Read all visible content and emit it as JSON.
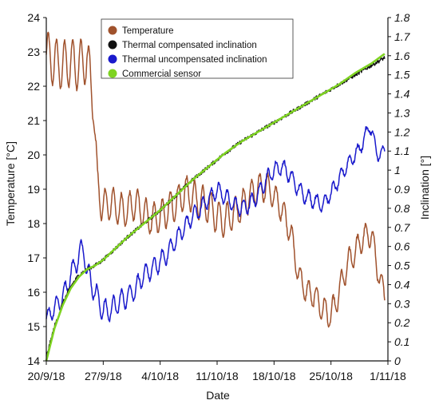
{
  "chart_data": {
    "type": "line",
    "title": "",
    "xlabel": "Date",
    "ylabel_left": "Temperature [°C]",
    "ylabel_right": "Inclination [°]",
    "x_tick_labels": [
      "20/9/18",
      "27/9/18",
      "4/10/18",
      "11/10/18",
      "18/10/18",
      "25/10/18",
      "1/11/18"
    ],
    "x_range_days": [
      0,
      42
    ],
    "ylim_left": [
      14,
      24
    ],
    "ylim_right": [
      0,
      1.8
    ],
    "y_ticks_left": [
      "14",
      "15",
      "16",
      "17",
      "18",
      "19",
      "20",
      "21",
      "22",
      "23",
      "24"
    ],
    "y_ticks_right": [
      "0",
      "0.1",
      "0.2",
      "0.3",
      "0.4",
      "0.5",
      "0.6",
      "0.7",
      "0.8",
      "0.9",
      "1",
      "1.1",
      "1.2",
      "1.3",
      "1.4",
      "1.5",
      "1.6",
      "1.7",
      "1.8"
    ],
    "grid": false,
    "legend_position": "top-center",
    "series": [
      {
        "name": "Temperature",
        "axis": "left",
        "color": "#a0522d",
        "noise": 0.06,
        "points": [
          [
            0,
            22.9
          ],
          [
            1,
            22.7
          ],
          [
            2,
            22.6
          ],
          [
            3,
            22.7
          ],
          [
            4,
            22.6
          ],
          [
            5,
            22.8
          ],
          [
            5.8,
            21.6
          ],
          [
            6.3,
            19.0
          ],
          [
            7,
            18.5
          ],
          [
            8,
            18.6
          ],
          [
            9,
            18.4
          ],
          [
            10,
            18.4
          ],
          [
            11,
            18.6
          ],
          [
            12,
            18.3
          ],
          [
            13,
            18.1
          ],
          [
            14,
            18.2
          ],
          [
            15,
            18.4
          ],
          [
            16,
            18.6
          ],
          [
            17,
            18.9
          ],
          [
            18,
            18.8
          ],
          [
            19,
            18.6
          ],
          [
            20,
            18.5
          ],
          [
            21,
            18.2
          ],
          [
            22,
            18.1
          ],
          [
            23,
            18.3
          ],
          [
            24,
            18.5
          ],
          [
            25,
            18.8
          ],
          [
            26,
            19.0
          ],
          [
            27,
            19.1
          ],
          [
            28,
            18.8
          ],
          [
            29,
            18.4
          ],
          [
            30,
            17.8
          ],
          [
            31,
            16.5
          ],
          [
            32,
            16.0
          ],
          [
            33,
            15.9
          ],
          [
            34,
            15.5
          ],
          [
            35,
            15.3
          ],
          [
            36,
            16.0
          ],
          [
            37,
            16.8
          ],
          [
            38,
            17.2
          ],
          [
            39,
            17.6
          ],
          [
            40,
            17.7
          ],
          [
            41,
            16.3
          ],
          [
            41.6,
            16.0
          ]
        ],
        "oscillation": [
          [
            0,
            0.7
          ],
          [
            5.5,
            0.7
          ],
          [
            7,
            0.5
          ],
          [
            12,
            0.45
          ],
          [
            20,
            0.5
          ],
          [
            28,
            0.4
          ],
          [
            31,
            0.35
          ],
          [
            36,
            0.4
          ],
          [
            41.6,
            0.3
          ]
        ]
      },
      {
        "name": "Thermal compensated inclination",
        "axis": "right",
        "color": "#111111",
        "noise": 0.01,
        "points": [
          [
            0,
            0.02
          ],
          [
            1,
            0.18
          ],
          [
            2,
            0.3
          ],
          [
            3,
            0.39
          ],
          [
            4,
            0.45
          ],
          [
            5,
            0.48
          ],
          [
            6,
            0.5
          ],
          [
            7,
            0.53
          ],
          [
            8,
            0.57
          ],
          [
            9,
            0.61
          ],
          [
            10,
            0.65
          ],
          [
            12,
            0.72
          ],
          [
            14,
            0.79
          ],
          [
            16,
            0.87
          ],
          [
            18,
            0.95
          ],
          [
            20,
            1.02
          ],
          [
            22,
            1.09
          ],
          [
            24,
            1.15
          ],
          [
            26,
            1.2
          ],
          [
            28,
            1.25
          ],
          [
            30,
            1.3
          ],
          [
            32,
            1.35
          ],
          [
            34,
            1.4
          ],
          [
            36,
            1.45
          ],
          [
            38,
            1.5
          ],
          [
            40,
            1.55
          ],
          [
            41.6,
            1.59
          ]
        ]
      },
      {
        "name": "Thermal uncompensated inclination",
        "axis": "right",
        "color": "#1a1acc",
        "noise": 0.01,
        "points": [
          [
            0,
            0.22
          ],
          [
            1,
            0.28
          ],
          [
            2,
            0.33
          ],
          [
            3,
            0.45
          ],
          [
            4,
            0.55
          ],
          [
            4.6,
            0.6
          ],
          [
            5,
            0.47
          ],
          [
            6,
            0.36
          ],
          [
            7,
            0.26
          ],
          [
            8,
            0.27
          ],
          [
            9,
            0.31
          ],
          [
            10,
            0.34
          ],
          [
            11,
            0.38
          ],
          [
            12,
            0.45
          ],
          [
            13,
            0.48
          ],
          [
            14,
            0.52
          ],
          [
            15,
            0.57
          ],
          [
            16,
            0.64
          ],
          [
            17,
            0.7
          ],
          [
            18,
            0.76
          ],
          [
            19,
            0.8
          ],
          [
            20,
            0.85
          ],
          [
            21,
            0.9
          ],
          [
            22,
            0.86
          ],
          [
            23,
            0.82
          ],
          [
            24,
            0.8
          ],
          [
            25,
            0.82
          ],
          [
            26,
            0.87
          ],
          [
            27,
            0.95
          ],
          [
            28,
            1.0
          ],
          [
            29,
            1.02
          ],
          [
            30,
            0.97
          ],
          [
            31,
            0.9
          ],
          [
            32,
            0.86
          ],
          [
            33,
            0.84
          ],
          [
            34,
            0.82
          ],
          [
            35,
            0.88
          ],
          [
            36,
            0.95
          ],
          [
            37,
            1.03
          ],
          [
            38,
            1.08
          ],
          [
            39,
            1.15
          ],
          [
            39.7,
            1.24
          ],
          [
            40.5,
            1.12
          ],
          [
            41,
            1.06
          ],
          [
            41.6,
            1.12
          ]
        ],
        "oscillation": [
          [
            0,
            0.04
          ],
          [
            2,
            0.05
          ],
          [
            6,
            0.06
          ],
          [
            20,
            0.04
          ],
          [
            30,
            0.04
          ],
          [
            41.6,
            0.03
          ]
        ]
      },
      {
        "name": "Commercial sensor",
        "axis": "right",
        "color": "#7ed321",
        "noise": 0,
        "points": [
          [
            0,
            0.0
          ],
          [
            1,
            0.17
          ],
          [
            2,
            0.29
          ],
          [
            3,
            0.38
          ],
          [
            4,
            0.44
          ],
          [
            5,
            0.48
          ],
          [
            6,
            0.5
          ],
          [
            7,
            0.53
          ],
          [
            8,
            0.57
          ],
          [
            9,
            0.61
          ],
          [
            10,
            0.65
          ],
          [
            12,
            0.72
          ],
          [
            14,
            0.79
          ],
          [
            16,
            0.87
          ],
          [
            18,
            0.95
          ],
          [
            20,
            1.02
          ],
          [
            22,
            1.09
          ],
          [
            24,
            1.15
          ],
          [
            26,
            1.2
          ],
          [
            28,
            1.25
          ],
          [
            30,
            1.3
          ],
          [
            32,
            1.35
          ],
          [
            34,
            1.4
          ],
          [
            36,
            1.45
          ],
          [
            38,
            1.51
          ],
          [
            40,
            1.56
          ],
          [
            41.6,
            1.61
          ]
        ]
      }
    ]
  }
}
